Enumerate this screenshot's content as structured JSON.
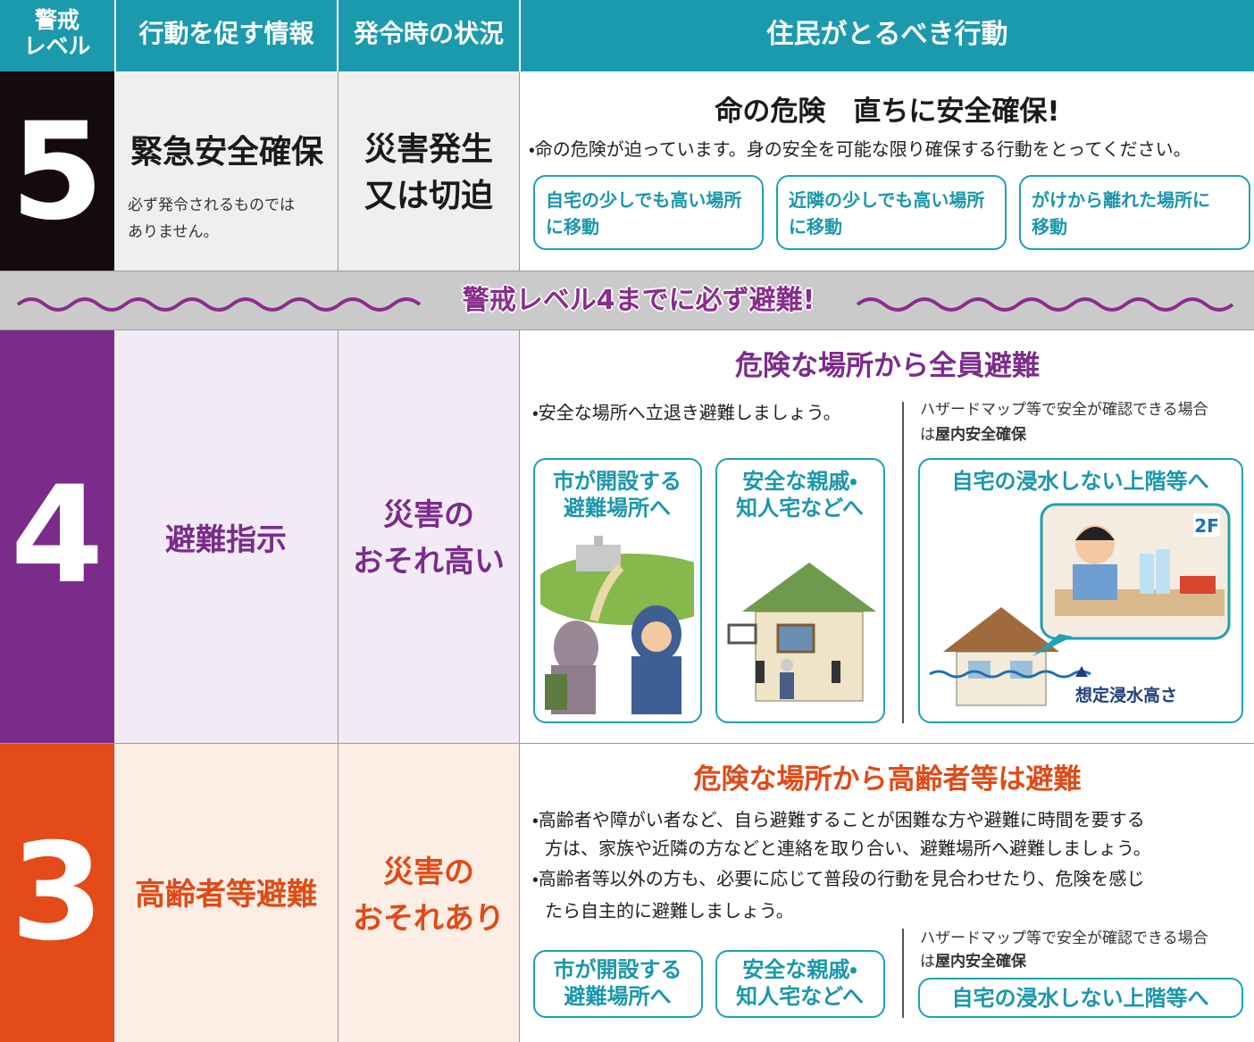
{
  "header": {
    "level": [
      "警戒",
      "レベル"
    ],
    "info": "行動を促す情報",
    "situation": "発令時の状況",
    "action": "住民がとるべき行動"
  },
  "level5": {
    "number": 5,
    "info": "緊急安全確保",
    "info_note": [
      "必ず発令されるものでは",
      "ありません。"
    ],
    "situation": [
      "災害発生",
      "又は切迫"
    ],
    "headline": "命の危険　直ちに安全確保!",
    "bullet": "・命の危険が迫っています。身の安全を可能な限り確保する行動をとってください。",
    "actions": [
      [
        "自宅の少しでも高い場所",
        "に移動"
      ],
      [
        "近隣の少しでも高い場所",
        "に移動"
      ],
      [
        "がけから離れた場所に",
        "移動"
      ]
    ]
  },
  "banner": "警戒レベル4までに必ず避難!",
  "level4": {
    "number": 4,
    "info": "避難指示",
    "situation": [
      "災害の",
      "おそれ高い"
    ],
    "headline": "危険な場所から全員避難",
    "bullet": "・安全な場所へ立退き避難しましょう。",
    "note": {
      "line1": "ハザードマップ等で安全が確認できる場合",
      "prefix": "は",
      "bold": "屋内安全確保"
    },
    "actions": [
      [
        "市が開設する",
        "避難場所へ"
      ],
      [
        "安全な親戚・",
        "知人宅などへ"
      ]
    ],
    "indoor": "自宅の浸水しない上階等へ",
    "floor_label": "2F",
    "flood_label": "想定浸水高さ"
  },
  "level3": {
    "number": 3,
    "info": "高齢者等避難",
    "situation": [
      "災害の",
      "おそれあり"
    ],
    "headline": "危険な場所から高齢者等は避難",
    "bullets": [
      "・高齢者や障がい者など、自ら避難することが困難な方や避難に時間を要する",
      "方は、家族や近隣の方などと連絡を取り合い、避難場所へ避難しましょう。",
      "・高齢者等以外の方も、必要に応じて普段の行動を見合わせたり、危険を感じ",
      "たら自主的に避難しましょう。"
    ],
    "note": {
      "line1": "ハザードマップ等で安全が確認できる場合",
      "prefix": "は",
      "bold": "屋内安全確保"
    },
    "actions": [
      [
        "市が開設する",
        "避難場所へ"
      ],
      [
        "安全な親戚・",
        "知人宅などへ"
      ]
    ],
    "indoor": "自宅の浸水しない上階等へ"
  }
}
